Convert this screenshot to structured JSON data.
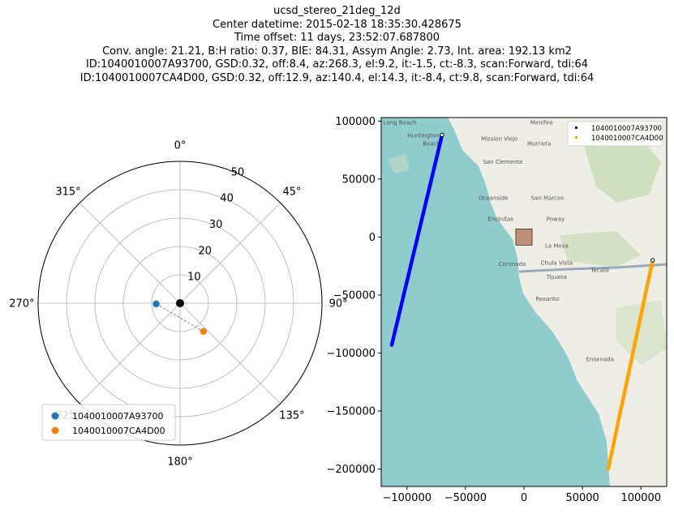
{
  "title_lines": [
    "ucsd_stereo_21deg_12d",
    "Center datetime: 2015-02-18 18:35:30.428675",
    "Time offset: 11 days, 23:52:07.687800",
    "Conv. angle: 21.21, B:H ratio: 0.37, BIE: 84.31, Assym Angle: 2.73, Int. area: 192.13 km2",
    "ID:1040010007A93700, GSD:0.32, off:8.4, az:268.3, el:9.2, it:-1.5, ct:-8.3, scan:Forward, tdi:64",
    "ID:1040010007CA4D00, GSD:0.32, off:12.9, az:140.4, el:14.3, it:-8.4, ct:9.8, scan:Forward, tdi:64"
  ],
  "colors": {
    "series1_polar": "#1f77b4",
    "series2_polar": "#ff7f0e",
    "series1_map": "#0000ff",
    "series2_map": "#ffa500",
    "center_point": "#000000",
    "overlap_box": "#a0522d",
    "water": "#8fcccc",
    "land": "#eeeee6"
  },
  "chart_data": [
    {
      "type": "scatter",
      "subtype": "polar",
      "theta_direction": "clockwise",
      "theta_zero": "north",
      "theta_ticks": [
        {
          "angle": 0,
          "label": "0°"
        },
        {
          "angle": 45,
          "label": "45°"
        },
        {
          "angle": 90,
          "label": "90°"
        },
        {
          "angle": 135,
          "label": "135°"
        },
        {
          "angle": 180,
          "label": "180°"
        },
        {
          "angle": 225,
          "label": "225°"
        },
        {
          "angle": 270,
          "label": "270°"
        },
        {
          "angle": 315,
          "label": "315°"
        }
      ],
      "r_ticks": [
        10,
        20,
        30,
        40,
        50
      ],
      "r_tick_labels": [
        "10",
        "20",
        "30",
        "40",
        "50"
      ],
      "rlim": [
        0,
        50
      ],
      "grid": true,
      "legend_position": "lower-left",
      "series": [
        {
          "name": "1040010007A93700",
          "az": 268.3,
          "off": 8.4
        },
        {
          "name": "1040010007CA4D00",
          "az": 140.4,
          "off": 12.9
        }
      ],
      "center": {
        "az": 0,
        "off": 0
      }
    },
    {
      "type": "line",
      "subtype": "map-tracks",
      "xlim": [
        -122000,
        122000
      ],
      "ylim": [
        -215000,
        103000
      ],
      "x_ticks": [
        -100000,
        -50000,
        0,
        50000,
        100000
      ],
      "x_tick_labels": [
        "−100000",
        "−50000",
        "0",
        "50000",
        "100000"
      ],
      "y_ticks": [
        100000,
        50000,
        0,
        -50000,
        -100000,
        -150000,
        -200000
      ],
      "y_tick_labels": [
        "100000",
        "50000",
        "0",
        "−50000",
        "−100000",
        "−150000",
        "−200000"
      ],
      "legend_position": "upper-right",
      "series": [
        {
          "name": "1040010007A93700",
          "start": [
            -70000,
            88000
          ],
          "end": [
            -113000,
            -93000
          ]
        },
        {
          "name": "1040010007CA4D00",
          "start": [
            110000,
            -20000
          ],
          "end": [
            72000,
            -200000
          ]
        }
      ],
      "overlap_box": {
        "x": [
          -7000,
          7000
        ],
        "y": [
          -7000,
          7000
        ]
      },
      "places": [
        {
          "name": "Long Beach",
          "x": -106000,
          "y": 97000
        },
        {
          "name": "Huntington",
          "x": -86000,
          "y": 86000
        },
        {
          "name": "Beach",
          "x": -79000,
          "y": 79000
        },
        {
          "name": "Menifee",
          "x": 15000,
          "y": 97000
        },
        {
          "name": "Mission Viejo",
          "x": -21000,
          "y": 83000
        },
        {
          "name": "Murrieta",
          "x": 13000,
          "y": 79000
        },
        {
          "name": "San Clemente",
          "x": -18000,
          "y": 63000
        },
        {
          "name": "Oceanside",
          "x": -26000,
          "y": 32000
        },
        {
          "name": "San Marcos",
          "x": 20000,
          "y": 32000
        },
        {
          "name": "Encinitas",
          "x": -20000,
          "y": 14000
        },
        {
          "name": "Poway",
          "x": 27000,
          "y": 14000
        },
        {
          "name": "La Mesa",
          "x": 28000,
          "y": -9000
        },
        {
          "name": "Coronado",
          "x": -10000,
          "y": -25000
        },
        {
          "name": "Chula Vista",
          "x": 28000,
          "y": -24000
        },
        {
          "name": "Tecate",
          "x": 65000,
          "y": -30000
        },
        {
          "name": "Tijuana",
          "x": 28000,
          "y": -36000
        },
        {
          "name": "Rosarito",
          "x": 20000,
          "y": -55000
        },
        {
          "name": "Ensenada",
          "x": 65000,
          "y": -107000
        }
      ]
    }
  ]
}
